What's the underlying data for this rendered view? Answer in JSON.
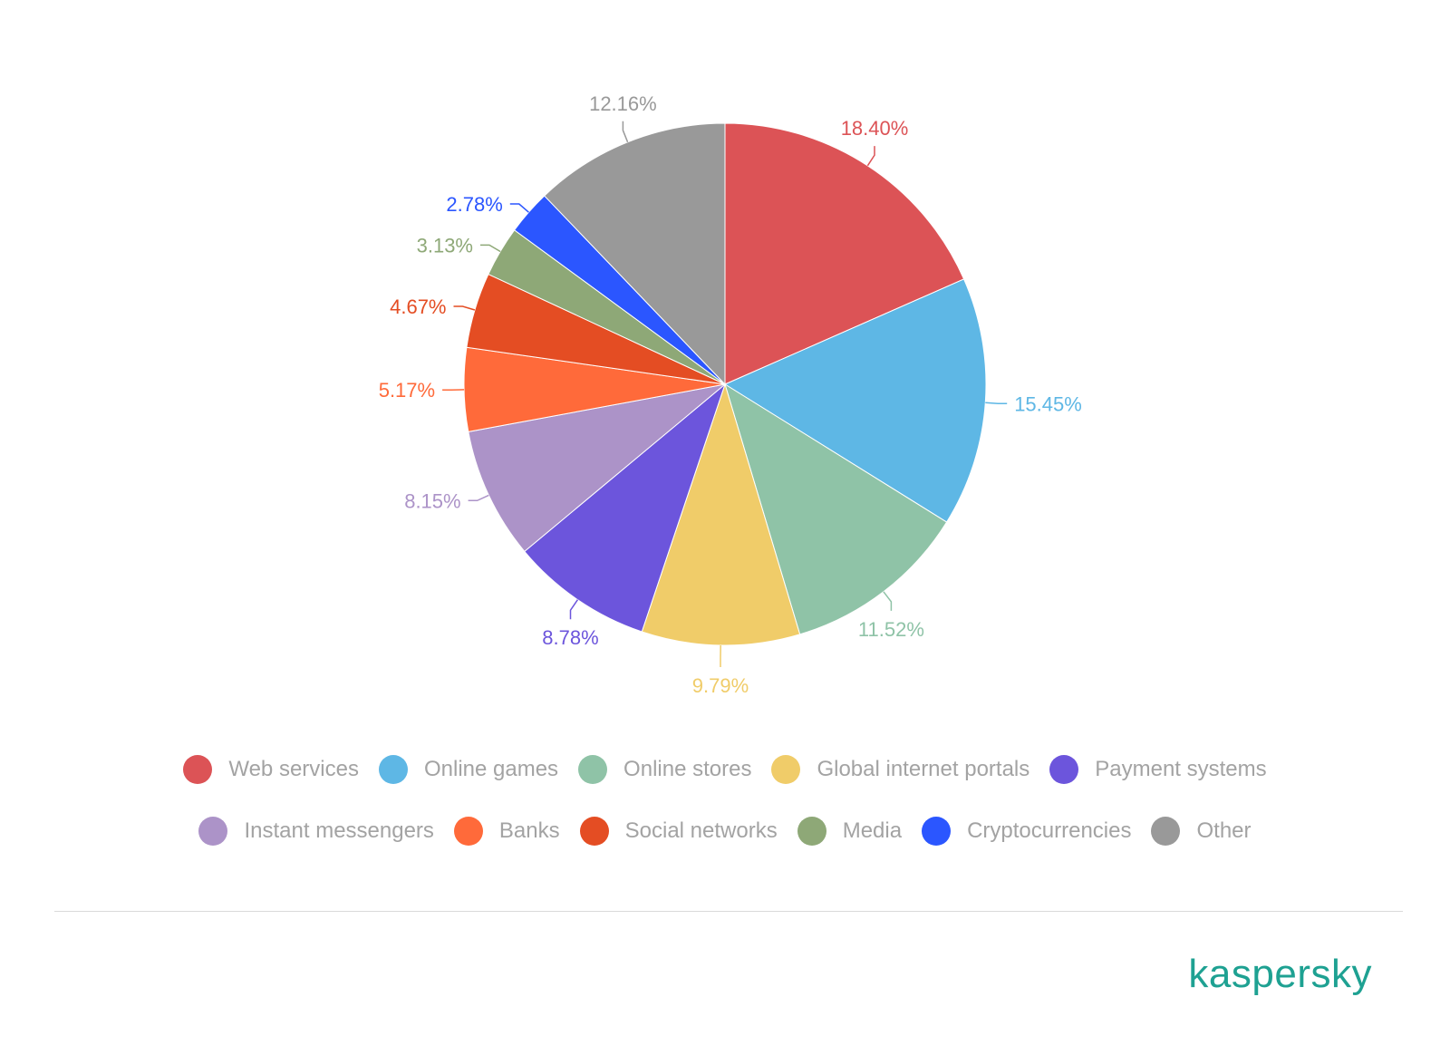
{
  "chart_data": {
    "type": "pie",
    "title": "",
    "start_angle_deg": 0,
    "direction": "clockwise",
    "legend_placement": "bottom",
    "slices": [
      {
        "name": "Web services",
        "value": 18.4,
        "label": "18.40%",
        "color": "#dc5356"
      },
      {
        "name": "Online games",
        "value": 15.45,
        "label": "15.45%",
        "color": "#5eb7e5"
      },
      {
        "name": "Online stores",
        "value": 11.52,
        "label": "11.52%",
        "color": "#8fc3a7"
      },
      {
        "name": "Global internet portals",
        "value": 9.79,
        "label": "9.79%",
        "color": "#f0cc69"
      },
      {
        "name": "Payment systems",
        "value": 8.78,
        "label": "8.78%",
        "color": "#6c55dc"
      },
      {
        "name": "Instant messengers",
        "value": 8.15,
        "label": "8.15%",
        "color": "#ac93c8"
      },
      {
        "name": "Banks",
        "value": 5.17,
        "label": "5.17%",
        "color": "#ff6a3a"
      },
      {
        "name": "Social networks",
        "value": 4.67,
        "label": "4.67%",
        "color": "#e44d23"
      },
      {
        "name": "Media",
        "value": 3.13,
        "label": "3.13%",
        "color": "#8ea877"
      },
      {
        "name": "Cryptocurrencies",
        "value": 2.78,
        "label": "2.78%",
        "color": "#2b56ff"
      },
      {
        "name": "Other",
        "value": 12.16,
        "label": "12.16%",
        "color": "#999999"
      }
    ]
  },
  "legend": {
    "row1": [
      "Web services",
      "Online games",
      "Online stores",
      "Global internet portals",
      "Payment systems"
    ],
    "row2": [
      "Instant messengers",
      "Banks",
      "Social networks",
      "Media",
      "Cryptocurrencies",
      "Other"
    ]
  },
  "brand": {
    "name": "kaspersky",
    "color": "#1ea192"
  }
}
